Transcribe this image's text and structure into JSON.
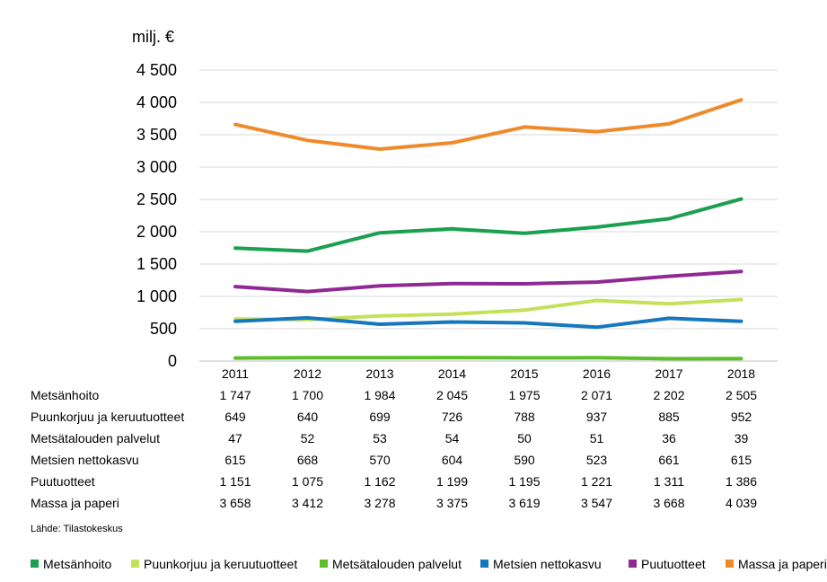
{
  "chart_data": {
    "type": "line",
    "ylabel": "milj. €",
    "ylim": [
      0,
      4500
    ],
    "yticks": [
      0,
      500,
      1000,
      1500,
      2000,
      2500,
      3000,
      3500,
      4000,
      4500
    ],
    "ytick_labels": [
      "0",
      "500",
      "1 000",
      "1 500",
      "2 000",
      "2 500",
      "3 000",
      "3 500",
      "4 000",
      "4 500"
    ],
    "grid": "horizontal",
    "legend_position": "bottom",
    "x": [
      "2011",
      "2012",
      "2013",
      "2014",
      "2015",
      "2016",
      "2017",
      "2018"
    ],
    "series": [
      {
        "name": "Metsänhoito",
        "color": "#1aa050",
        "values": [
          1747,
          1700,
          1984,
          2045,
          1975,
          2071,
          2202,
          2505
        ],
        "labels": [
          "1 747",
          "1 700",
          "1 984",
          "2 045",
          "1 975",
          "2 071",
          "2 202",
          "2 505"
        ]
      },
      {
        "name": "Puunkorjuu ja keruutuotteet",
        "color": "#c5e05a",
        "values": [
          649,
          640,
          699,
          726,
          788,
          937,
          885,
          952
        ],
        "labels": [
          "649",
          "640",
          "699",
          "726",
          "788",
          "937",
          "885",
          "952"
        ]
      },
      {
        "name": "Metsätalouden palvelut",
        "color": "#5cbf2a",
        "values": [
          47,
          52,
          53,
          54,
          50,
          51,
          36,
          39
        ],
        "labels": [
          "47",
          "52",
          "53",
          "54",
          "50",
          "51",
          "36",
          "39"
        ]
      },
      {
        "name": "Metsien nettokasvu",
        "color": "#1578be",
        "values": [
          615,
          668,
          570,
          604,
          590,
          523,
          661,
          615
        ],
        "labels": [
          "615",
          "668",
          "570",
          "604",
          "590",
          "523",
          "661",
          "615"
        ]
      },
      {
        "name": "Puutuotteet",
        "color": "#8e2a92",
        "values": [
          1151,
          1075,
          1162,
          1199,
          1195,
          1221,
          1311,
          1386
        ],
        "labels": [
          "1 151",
          "1 075",
          "1 162",
          "1 199",
          "1 195",
          "1 221",
          "1 311",
          "1 386"
        ]
      },
      {
        "name": "Massa ja paperi",
        "color": "#ef8a2a",
        "values": [
          3658,
          3412,
          3278,
          3375,
          3619,
          3547,
          3668,
          4039
        ],
        "labels": [
          "3 658",
          "3 412",
          "3 278",
          "3 375",
          "3 619",
          "3 547",
          "3 668",
          "4 039"
        ]
      }
    ],
    "line_draw_order": [
      2,
      1,
      3,
      4,
      0,
      5
    ],
    "source": "Lähde: Tilastokeskus"
  }
}
